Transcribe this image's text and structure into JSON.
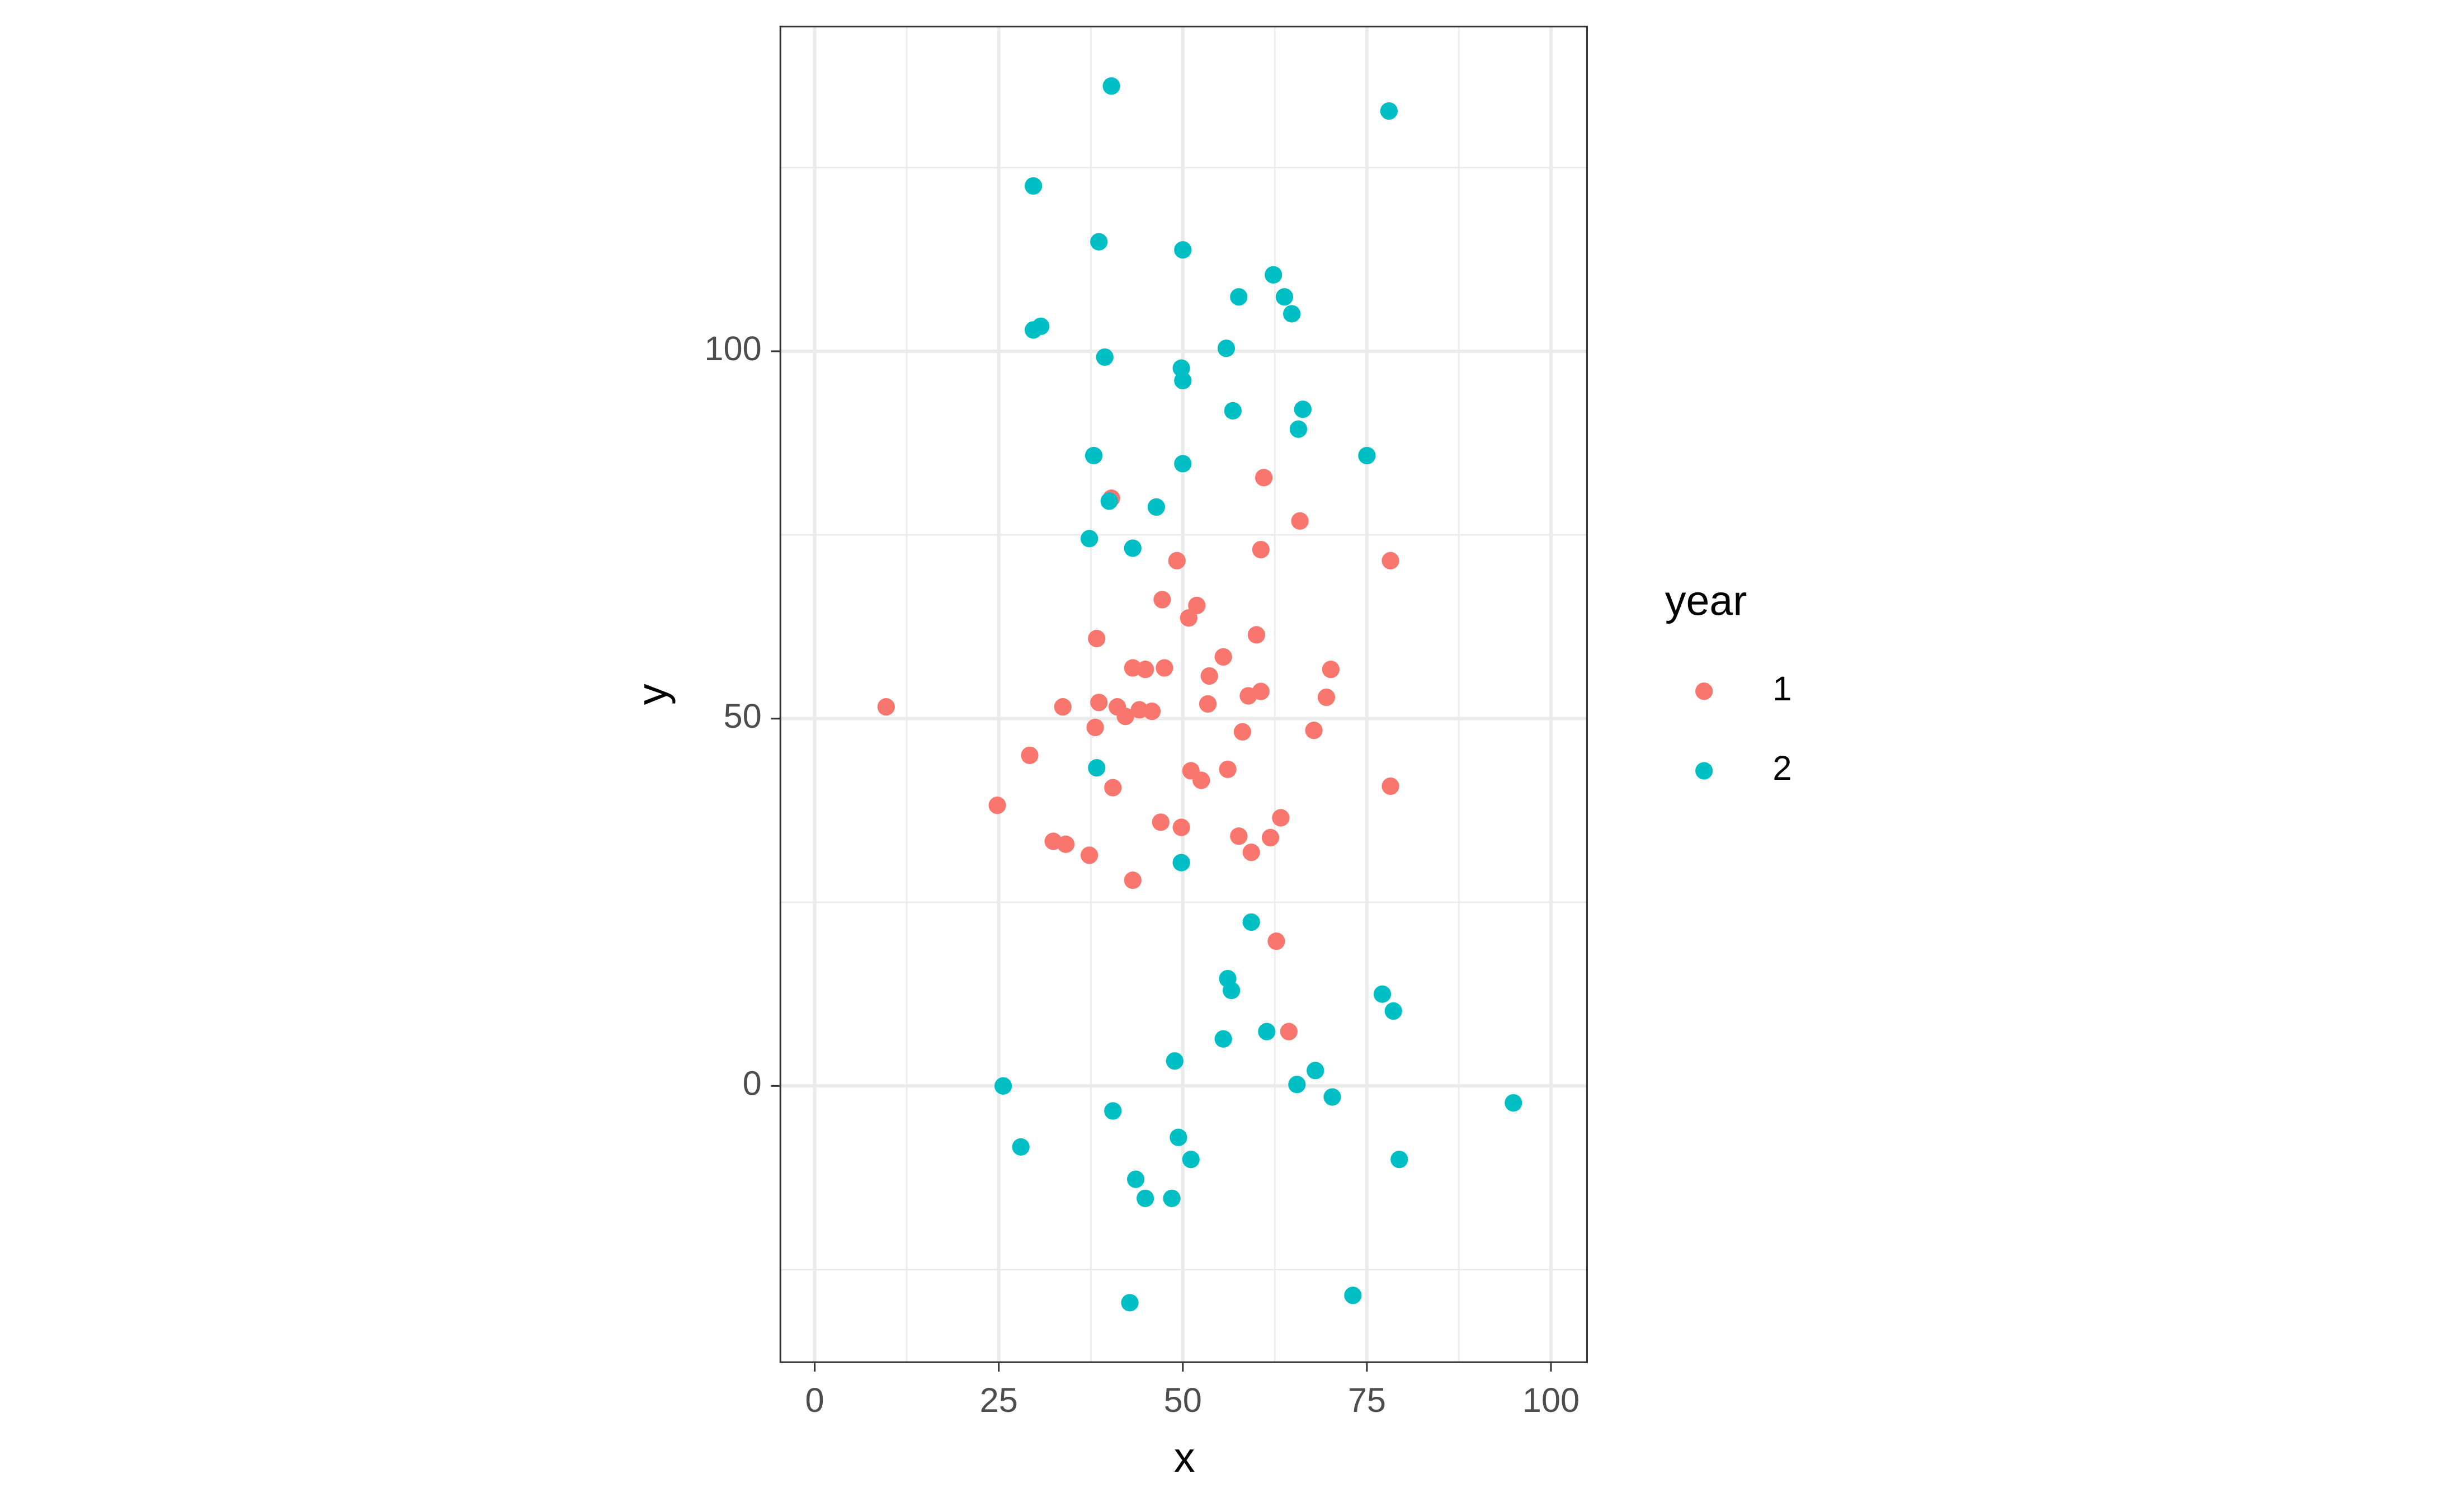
{
  "chart_data": {
    "type": "scatter",
    "x_label": "x",
    "y_label": "y",
    "legend_title": "year",
    "legend": "right",
    "grid": true,
    "xlim": [
      -4.66,
      104.9
    ],
    "ylim": [
      -37.6,
      144.2
    ],
    "xticks": [
      0,
      25,
      50,
      75,
      100
    ],
    "yticks": [
      0,
      50,
      100
    ],
    "series": [
      {
        "name": "1",
        "color": "#F8766D",
        "x": [
          9.7,
          24.8,
          29.2,
          32.4,
          34.1,
          33.7,
          37.3,
          38.1,
          38.3,
          38.6,
          40.3,
          40.5,
          41.1,
          42.2,
          43.2,
          43.2,
          44.1,
          44.9,
          45.8,
          47.0,
          47.2,
          47.5,
          49.2,
          49.8,
          50.8,
          51.1,
          51.9,
          52.5,
          53.4,
          53.6,
          55.5,
          56.1,
          57.6,
          58.1,
          58.9,
          59.3,
          60.0,
          60.6,
          60.6,
          61.0,
          61.9,
          62.7,
          63.3,
          64.4,
          65.9,
          67.8,
          69.5,
          70.1,
          78.2,
          78.2
        ],
        "values": [
          51.6,
          38.2,
          45.0,
          33.3,
          32.9,
          51.6,
          31.4,
          48.8,
          60.9,
          52.2,
          80.0,
          40.6,
          51.6,
          50.3,
          56.9,
          28.0,
          51.2,
          56.7,
          51.0,
          35.9,
          66.2,
          56.9,
          71.5,
          35.2,
          63.7,
          42.9,
          65.4,
          41.6,
          52.0,
          55.8,
          58.4,
          43.1,
          34.0,
          48.2,
          53.1,
          31.8,
          61.4,
          73.0,
          53.7,
          82.8,
          33.8,
          19.7,
          36.5,
          7.4,
          76.9,
          48.4,
          52.9,
          56.7,
          71.5,
          40.8
        ]
      },
      {
        "name": "2",
        "color": "#00BFC4",
        "x": [
          40.3,
          78.0,
          29.7,
          38.6,
          50.0,
          62.3,
          57.6,
          63.8,
          64.8,
          29.7,
          30.7,
          39.4,
          55.9,
          49.8,
          50.0,
          56.8,
          66.3,
          65.7,
          37.9,
          75.0,
          50.0,
          40.0,
          46.4,
          37.3,
          43.2,
          38.3,
          49.8,
          59.3,
          56.1,
          56.6,
          77.1,
          78.6,
          61.4,
          55.5,
          48.9,
          68.0,
          25.6,
          65.5,
          70.3,
          94.9,
          40.5,
          49.4,
          28.0,
          51.1,
          79.4,
          43.6,
          44.9,
          48.5,
          73.1,
          42.8
        ],
        "values": [
          136.1,
          132.7,
          122.5,
          114.9,
          113.8,
          110.4,
          107.4,
          107.4,
          105.1,
          102.9,
          103.4,
          99.2,
          100.4,
          97.7,
          96.0,
          91.9,
          92.1,
          89.4,
          85.8,
          85.8,
          84.7,
          79.6,
          78.8,
          74.5,
          73.2,
          43.3,
          30.4,
          22.3,
          14.6,
          13.0,
          12.5,
          10.2,
          7.4,
          6.4,
          3.4,
          2.1,
          0.0,
          0.2,
          -1.5,
          -2.3,
          -3.4,
          -7.0,
          -8.3,
          -10.0,
          -10.0,
          -12.7,
          -15.3,
          -15.3,
          -28.5,
          -29.5
        ]
      }
    ]
  }
}
